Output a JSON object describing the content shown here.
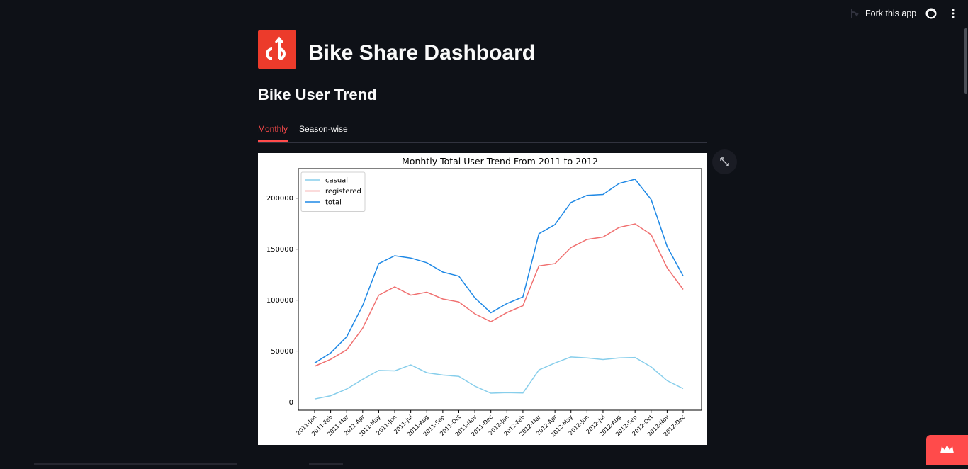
{
  "header": {
    "fork_label": "Fork this app"
  },
  "app": {
    "title": "Bike Share Dashboard",
    "logo_text": "cb",
    "accent": "#ff4b4b",
    "logo_color": "#ec3b2b"
  },
  "section": {
    "title": "Bike User Trend"
  },
  "tabs": [
    {
      "label": "Monthly",
      "active": true
    },
    {
      "label": "Season-wise",
      "active": false
    }
  ],
  "chart_data": {
    "type": "line",
    "title": "Monhtly Total User Trend From 2011 to 2012",
    "xlabel": "",
    "ylabel": "",
    "categories": [
      "2011-Jan",
      "2011-Feb",
      "2011-Mar",
      "2011-Apr",
      "2011-May",
      "2011-Jun",
      "2011-Jul",
      "2011-Aug",
      "2011-Sep",
      "2011-Oct",
      "2011-Nov",
      "2011-Dec",
      "2012-Jan",
      "2012-Feb",
      "2012-Mar",
      "2012-Apr",
      "2012-May",
      "2012-Jun",
      "2012-Jul",
      "2012-Aug",
      "2012-Sep",
      "2012-Oct",
      "2012-Nov",
      "2012-Dec"
    ],
    "yticks": [
      0,
      50000,
      100000,
      150000,
      200000
    ],
    "ylim": [
      -8000,
      229000
    ],
    "legend_position": "top-left",
    "grid": false,
    "series": [
      {
        "name": "casual",
        "color": "#87ceeb",
        "values": [
          3000,
          6200,
          12800,
          22300,
          31000,
          30600,
          36400,
          28800,
          26500,
          25200,
          15600,
          8700,
          9200,
          8900,
          31500,
          38300,
          44200,
          43300,
          41700,
          43200,
          43700,
          34500,
          21000,
          13200
        ]
      },
      {
        "name": "registered",
        "color": "#f07070",
        "values": [
          35100,
          41900,
          51200,
          72500,
          104800,
          112900,
          104900,
          107800,
          101100,
          98200,
          86500,
          78900,
          87800,
          94500,
          133600,
          135800,
          151600,
          159500,
          161900,
          171300,
          174800,
          164300,
          131700,
          110500
        ]
      },
      {
        "name": "total",
        "color": "#1e88e5",
        "values": [
          38200,
          48200,
          64000,
          94800,
          135800,
          143500,
          141300,
          136700,
          127500,
          123500,
          102200,
          87600,
          96700,
          103100,
          165100,
          174100,
          195800,
          202800,
          203600,
          214500,
          218600,
          198800,
          152700,
          123700
        ]
      }
    ]
  }
}
